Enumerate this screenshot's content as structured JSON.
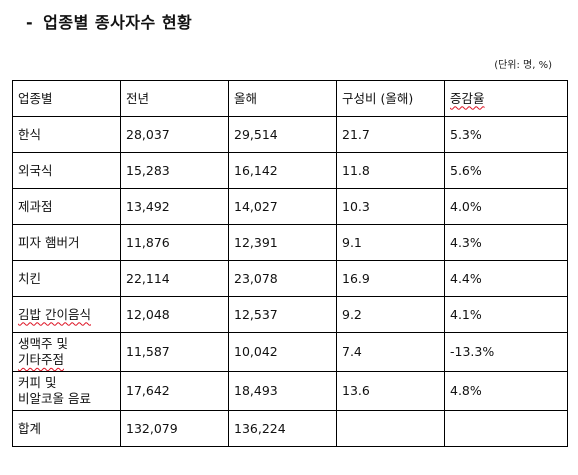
{
  "title": {
    "dash": "-",
    "text": "업종별 종사자수 현황"
  },
  "unit": "(단위:  명, %)",
  "table": {
    "headers": [
      "업종별",
      "전년",
      "올해",
      "구성비 (올해)",
      "증감율"
    ],
    "rows": [
      {
        "category": "한식",
        "prev": "28,037",
        "curr": "29,514",
        "ratio": "21.7",
        "change": "5.3%"
      },
      {
        "category": "외국식",
        "prev": "15,283",
        "curr": "16,142",
        "ratio": "11.8",
        "change": "5.6%"
      },
      {
        "category": "제과점",
        "prev": "13,492",
        "curr": "14,027",
        "ratio": "10.3",
        "change": "4.0%"
      },
      {
        "category": "피자 햄버거",
        "prev": "11,876",
        "curr": "12,391",
        "ratio": "9.1",
        "change": "4.3%"
      },
      {
        "category": "치킨",
        "prev": "22,114",
        "curr": "23,078",
        "ratio": "16.9",
        "change": "4.4%"
      },
      {
        "category": "김밥 간이음식",
        "prev": "12,048",
        "curr": "12,537",
        "ratio": "9.2",
        "change": "4.1%"
      },
      {
        "category_line1": "생맥주 및",
        "category_line2": "기타주점",
        "prev": "11,587",
        "curr": "10,042",
        "ratio": "7.4",
        "change": "-13.3%"
      },
      {
        "category_line1": "커피 및",
        "category_line2": "비알코올 음료",
        "prev": "17,642",
        "curr": "18,493",
        "ratio": "13.6",
        "change": "4.8%"
      },
      {
        "category": "합계",
        "prev": "132,079",
        "curr": "136,224",
        "ratio": "",
        "change": ""
      }
    ]
  }
}
